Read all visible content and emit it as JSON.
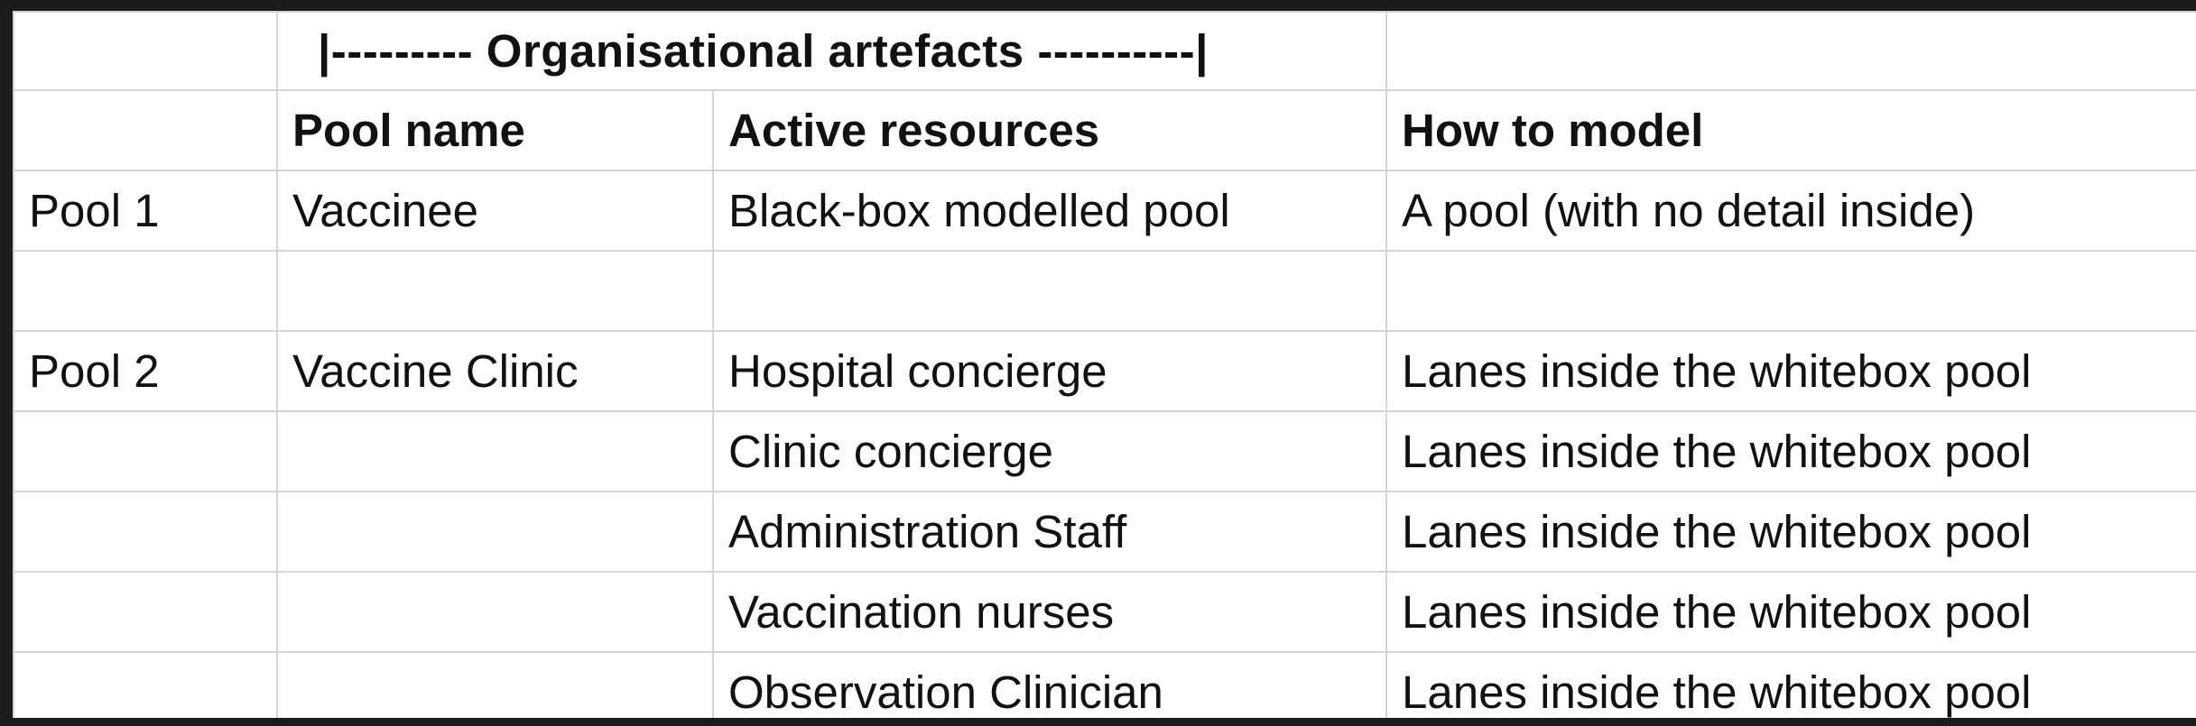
{
  "table": {
    "group_header": "|--------- Organisational artefacts ----------|",
    "columns": [
      "",
      "Pool name",
      "Active resources",
      "How to model"
    ],
    "rows": [
      [
        "Pool 1",
        "Vaccinee",
        "Black-box modelled pool",
        "A pool (with no detail inside)"
      ],
      [
        "",
        "",
        "",
        ""
      ],
      [
        "Pool 2",
        "Vaccine Clinic",
        "Hospital concierge",
        "Lanes inside the whitebox pool"
      ],
      [
        "",
        "",
        "Clinic concierge",
        "Lanes inside the whitebox pool"
      ],
      [
        "",
        "",
        "Administration Staff",
        "Lanes inside the whitebox pool"
      ],
      [
        "",
        "",
        "Vaccination nurses",
        "Lanes inside the whitebox pool"
      ],
      [
        "",
        "",
        "Observation Clinician",
        "Lanes inside the whitebox pool"
      ]
    ]
  }
}
